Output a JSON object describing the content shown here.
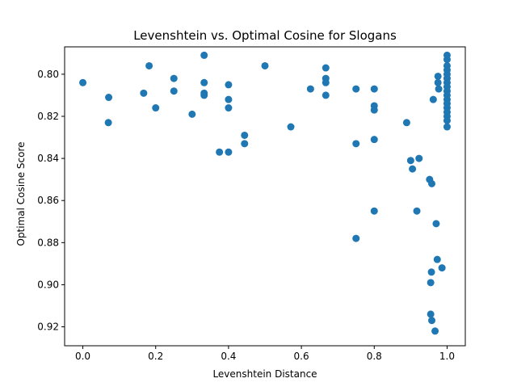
{
  "chart_data": {
    "type": "scatter",
    "title": "Levenshtein vs. Optimal Cosine for Slogans",
    "xlabel": "Levenshtein Distance",
    "ylabel": "Optimal Cosine Score",
    "xlim": [
      -0.05,
      1.05
    ],
    "ylim": [
      0.929,
      0.787
    ],
    "y_inverted": true,
    "grid": false,
    "marker_color": "#1f77b4",
    "xticks": [
      0.0,
      0.2,
      0.4,
      0.6,
      0.8,
      1.0
    ],
    "xtick_labels": [
      "0.0",
      "0.2",
      "0.4",
      "0.6",
      "0.8",
      "1.0"
    ],
    "yticks": [
      0.8,
      0.82,
      0.84,
      0.86,
      0.88,
      0.9,
      0.92
    ],
    "ytick_labels": [
      "0.80",
      "0.82",
      "0.84",
      "0.86",
      "0.88",
      "0.90",
      "0.92"
    ],
    "points": [
      [
        0.0,
        0.804
      ],
      [
        0.07,
        0.823
      ],
      [
        0.071,
        0.811
      ],
      [
        0.167,
        0.809
      ],
      [
        0.182,
        0.796
      ],
      [
        0.2,
        0.816
      ],
      [
        0.25,
        0.802
      ],
      [
        0.25,
        0.808
      ],
      [
        0.3,
        0.819
      ],
      [
        0.333,
        0.791
      ],
      [
        0.333,
        0.804
      ],
      [
        0.333,
        0.809
      ],
      [
        0.333,
        0.81
      ],
      [
        0.375,
        0.837
      ],
      [
        0.4,
        0.805
      ],
      [
        0.4,
        0.812
      ],
      [
        0.4,
        0.816
      ],
      [
        0.4,
        0.837
      ],
      [
        0.444,
        0.829
      ],
      [
        0.444,
        0.833
      ],
      [
        0.5,
        0.796
      ],
      [
        0.571,
        0.825
      ],
      [
        0.625,
        0.807
      ],
      [
        0.667,
        0.797
      ],
      [
        0.667,
        0.802
      ],
      [
        0.667,
        0.804
      ],
      [
        0.667,
        0.81
      ],
      [
        0.75,
        0.807
      ],
      [
        0.75,
        0.833
      ],
      [
        0.75,
        0.878
      ],
      [
        0.8,
        0.807
      ],
      [
        0.8,
        0.815
      ],
      [
        0.8,
        0.817
      ],
      [
        0.8,
        0.831
      ],
      [
        0.8,
        0.865
      ],
      [
        0.889,
        0.823
      ],
      [
        0.9,
        0.841
      ],
      [
        0.905,
        0.845
      ],
      [
        0.917,
        0.865
      ],
      [
        0.923,
        0.84
      ],
      [
        0.952,
        0.85
      ],
      [
        0.955,
        0.899
      ],
      [
        0.957,
        0.894
      ],
      [
        0.958,
        0.852
      ],
      [
        0.958,
        0.917
      ],
      [
        0.962,
        0.812
      ],
      [
        0.967,
        0.922
      ],
      [
        0.97,
        0.871
      ],
      [
        0.973,
        0.888
      ],
      [
        0.975,
        0.801
      ],
      [
        0.975,
        0.804
      ],
      [
        0.977,
        0.807
      ],
      [
        0.986,
        0.892
      ],
      [
        0.955,
        0.914
      ],
      [
        1.0,
        0.791
      ],
      [
        1.0,
        0.793
      ],
      [
        1.0,
        0.796
      ],
      [
        1.0,
        0.798
      ],
      [
        1.0,
        0.8
      ],
      [
        1.0,
        0.802
      ],
      [
        1.0,
        0.804
      ],
      [
        1.0,
        0.806
      ],
      [
        1.0,
        0.808
      ],
      [
        1.0,
        0.81
      ],
      [
        1.0,
        0.812
      ],
      [
        1.0,
        0.814
      ],
      [
        1.0,
        0.816
      ],
      [
        1.0,
        0.818
      ],
      [
        1.0,
        0.82
      ],
      [
        1.0,
        0.822
      ],
      [
        1.0,
        0.825
      ]
    ]
  }
}
